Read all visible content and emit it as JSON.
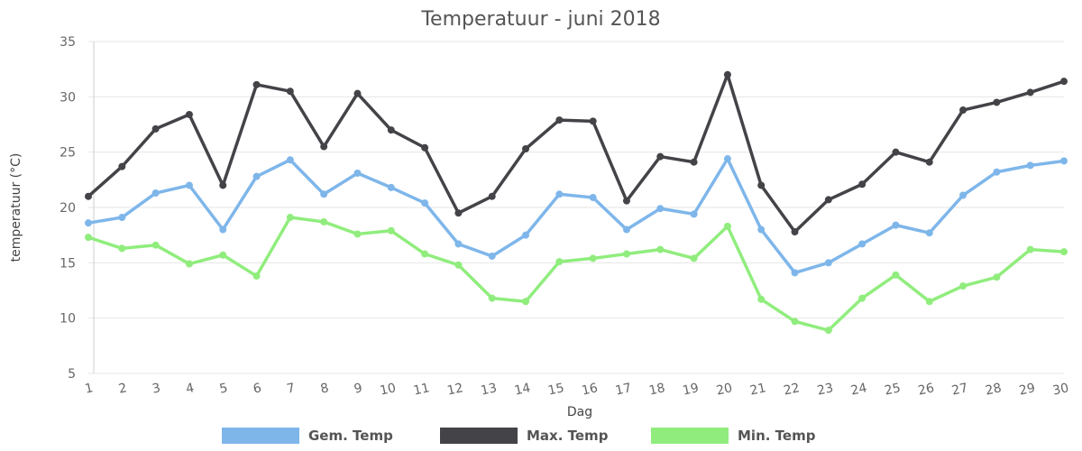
{
  "chart_data": {
    "type": "line",
    "title": "Temperatuur - juni 2018",
    "xlabel": "Dag",
    "ylabel": "temperatuur (°C)",
    "ylim": [
      5,
      35
    ],
    "yticks": [
      5,
      10,
      15,
      20,
      25,
      30,
      35
    ],
    "x": [
      1,
      2,
      3,
      4,
      5,
      6,
      7,
      8,
      9,
      10,
      11,
      12,
      13,
      14,
      15,
      16,
      17,
      18,
      19,
      20,
      21,
      22,
      23,
      24,
      25,
      26,
      27,
      28,
      29,
      30
    ],
    "legend_position": "bottom",
    "grid": true,
    "series": [
      {
        "name": "Gem. Temp",
        "color": "#7eb6ea",
        "values": [
          18.6,
          19.1,
          21.3,
          22.0,
          18.0,
          22.8,
          24.3,
          21.2,
          23.1,
          21.8,
          20.4,
          16.7,
          15.6,
          17.5,
          21.2,
          20.9,
          18.0,
          19.9,
          19.4,
          24.4,
          18.0,
          14.1,
          15.0,
          16.7,
          18.4,
          17.7,
          21.1,
          23.2,
          23.8,
          24.2
        ]
      },
      {
        "name": "Max. Temp",
        "color": "#434348",
        "values": [
          21.0,
          23.7,
          27.1,
          28.4,
          22.0,
          31.1,
          30.5,
          25.5,
          30.3,
          27.0,
          25.4,
          19.5,
          21.0,
          25.3,
          27.9,
          27.8,
          20.6,
          24.6,
          24.1,
          32.0,
          22.0,
          17.8,
          20.7,
          22.1,
          25.0,
          24.1,
          28.8,
          29.5,
          30.4,
          31.4
        ]
      },
      {
        "name": "Min. Temp",
        "color": "#90ed7d",
        "values": [
          17.3,
          16.3,
          16.6,
          14.9,
          15.7,
          13.8,
          19.1,
          18.7,
          17.6,
          17.9,
          15.8,
          14.8,
          11.8,
          11.5,
          15.1,
          15.4,
          15.8,
          16.2,
          15.4,
          18.3,
          11.7,
          9.7,
          8.9,
          11.8,
          13.9,
          11.5,
          12.9,
          13.7,
          16.2,
          16.0
        ]
      }
    ]
  }
}
